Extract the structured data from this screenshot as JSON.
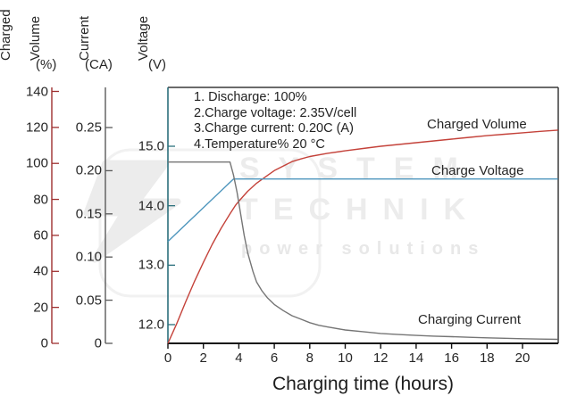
{
  "watermark": {
    "line1": "SYSTEM",
    "line2": "TECHNIK",
    "line3": "power solutions"
  },
  "chart_data": {
    "type": "line",
    "title": "",
    "grid": false,
    "legend_position": "inline-labels",
    "x_axis": {
      "label": "Charging time (hours)",
      "min": 0,
      "max": 22,
      "tick_values": [
        0,
        2,
        4,
        6,
        8,
        10,
        12,
        14,
        16,
        18,
        20
      ],
      "tick_labels": [
        "0",
        "2",
        "4",
        "6",
        "8",
        "10",
        "12",
        "14",
        "16",
        "18",
        "20"
      ]
    },
    "y_axes": [
      {
        "id": "volume",
        "title_words": [
          "Charged",
          "Volume"
        ],
        "unit": "(%)",
        "min": 0,
        "max": 140,
        "tick_values": [
          0,
          20,
          40,
          60,
          80,
          100,
          120,
          140
        ],
        "tick_labels": [
          "0",
          "20",
          "40",
          "60",
          "80",
          "100",
          "120",
          "140"
        ],
        "color": "#9e2f2f"
      },
      {
        "id": "current",
        "title_words": [
          "Current"
        ],
        "unit": "(CA)",
        "min": 0,
        "max": 0.25,
        "tick_values": [
          0,
          0.05,
          0.1,
          0.15,
          0.2,
          0.25
        ],
        "tick_labels": [
          "0",
          "0.05",
          "0.10",
          "0.15",
          "0.20",
          "0.25"
        ],
        "color": "#5a5a5a"
      },
      {
        "id": "voltage",
        "title_words": [
          "Voltage"
        ],
        "unit": "(V)",
        "min": 11.7,
        "max": 15.3,
        "tick_values": [
          12.0,
          13.0,
          14.0,
          15.0
        ],
        "tick_labels": [
          "12.0",
          "13.0",
          "14.0",
          "15.0"
        ],
        "color": "#2b6f7c"
      }
    ],
    "conditions": [
      "1. Discharge: 100%",
      "2.Charge voltage: 2.35V/cell",
      "3.Charge current: 0.20C (A)",
      "4.Temperature% 20 °C"
    ],
    "series": [
      {
        "name": "Charged Volume",
        "axis": "volume",
        "color": "#c4423a",
        "points": [
          [
            0,
            0
          ],
          [
            0.5,
            11
          ],
          [
            1,
            23
          ],
          [
            1.5,
            34.5
          ],
          [
            2,
            45
          ],
          [
            2.5,
            55
          ],
          [
            3,
            64
          ],
          [
            3.5,
            72
          ],
          [
            3.8,
            76.5
          ],
          [
            4,
            79
          ],
          [
            4.5,
            84.5
          ],
          [
            5,
            89
          ],
          [
            5.5,
            92.5
          ],
          [
            6,
            96
          ],
          [
            6.5,
            98.5
          ],
          [
            7,
            101
          ],
          [
            7.5,
            102.5
          ],
          [
            8,
            103.8
          ],
          [
            9,
            105.6
          ],
          [
            10,
            107
          ],
          [
            11,
            108.3
          ],
          [
            12,
            109.5
          ],
          [
            13,
            110.5
          ],
          [
            14,
            111.5
          ],
          [
            15,
            112.5
          ],
          [
            16,
            113.5
          ],
          [
            17,
            114.5
          ],
          [
            18,
            115.4
          ],
          [
            19,
            116.2
          ],
          [
            20,
            117
          ],
          [
            21,
            117.8
          ],
          [
            22,
            118.5
          ]
        ]
      },
      {
        "name": "Charge Voltage",
        "axis": "voltage",
        "color": "#4e96bd",
        "points": [
          [
            0,
            13.4
          ],
          [
            3.7,
            14.45
          ],
          [
            22,
            14.45
          ]
        ]
      },
      {
        "name": "Charging Current",
        "axis": "current",
        "color": "#757575",
        "points": [
          [
            0,
            0.21
          ],
          [
            3.5,
            0.21
          ],
          [
            3.7,
            0.195
          ],
          [
            3.9,
            0.175
          ],
          [
            4.1,
            0.15
          ],
          [
            4.3,
            0.125
          ],
          [
            4.5,
            0.105
          ],
          [
            4.8,
            0.083
          ],
          [
            5,
            0.071
          ],
          [
            5.3,
            0.061
          ],
          [
            5.6,
            0.053
          ],
          [
            6,
            0.045
          ],
          [
            6.5,
            0.038
          ],
          [
            7,
            0.032
          ],
          [
            7.5,
            0.028
          ],
          [
            8,
            0.024
          ],
          [
            8.5,
            0.021
          ],
          [
            9,
            0.019
          ],
          [
            10,
            0.0155
          ],
          [
            11,
            0.0135
          ],
          [
            12,
            0.0115
          ],
          [
            13,
            0.0102
          ],
          [
            14,
            0.0092
          ],
          [
            15,
            0.0084
          ],
          [
            16,
            0.0077
          ],
          [
            17,
            0.007
          ],
          [
            18,
            0.0064
          ],
          [
            19,
            0.0059
          ],
          [
            20,
            0.0054
          ],
          [
            21,
            0.005
          ],
          [
            22,
            0.0046
          ]
        ]
      }
    ]
  }
}
